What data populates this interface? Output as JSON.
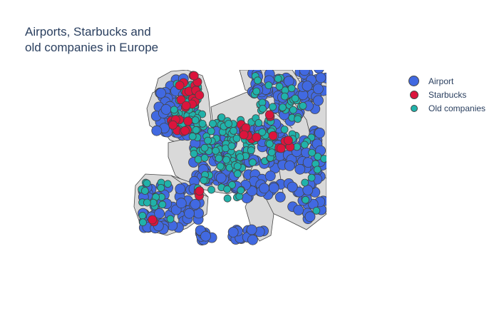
{
  "title": {
    "line1": "Airports, Starbucks and",
    "line2": "old companies in Europe"
  },
  "legend": [
    {
      "label": "Airport",
      "color": "#4169e1"
    },
    {
      "label": "Starbucks",
      "color": "#dc143c"
    },
    {
      "label": "Old companies",
      "color": "#20b2aa"
    }
  ],
  "map": {
    "land_color": "#d9d9d9",
    "ocean_color": "#ffffff",
    "border_color": "#444444"
  }
}
